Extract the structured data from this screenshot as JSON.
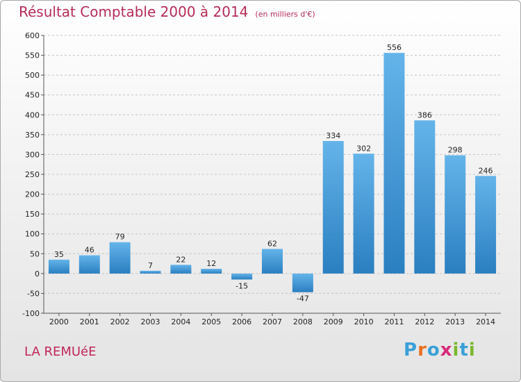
{
  "title": "Résultat Comptable 2000 à 2014",
  "subtitle": "(en milliers d'€)",
  "commune": "LA REMUéE",
  "brand": {
    "letters": [
      "P",
      "r",
      "o",
      "x",
      "i",
      "t",
      "i"
    ],
    "colors": [
      "#3aa0d8",
      "#e8701f",
      "#3aa0d8",
      "#d82a7a",
      "#7ab82e",
      "#3aa0d8",
      "#7ab82e"
    ]
  },
  "colors": {
    "bar_light": "#64b4ea",
    "bar_dark": "#2a7fc0",
    "title": "#b52b57"
  },
  "chart_data": {
    "type": "bar",
    "categories": [
      "2000",
      "2001",
      "2002",
      "2003",
      "2004",
      "2005",
      "2006",
      "2007",
      "2008",
      "2009",
      "2010",
      "2011",
      "2012",
      "2013",
      "2014"
    ],
    "values": [
      35,
      46,
      79,
      7,
      22,
      12,
      -15,
      62,
      -47,
      334,
      302,
      556,
      386,
      298,
      246
    ],
    "ylim": [
      -100,
      600
    ],
    "yticks": [
      -100,
      -50,
      0,
      50,
      100,
      150,
      200,
      250,
      300,
      350,
      400,
      450,
      500,
      550,
      600
    ],
    "grid": true
  }
}
